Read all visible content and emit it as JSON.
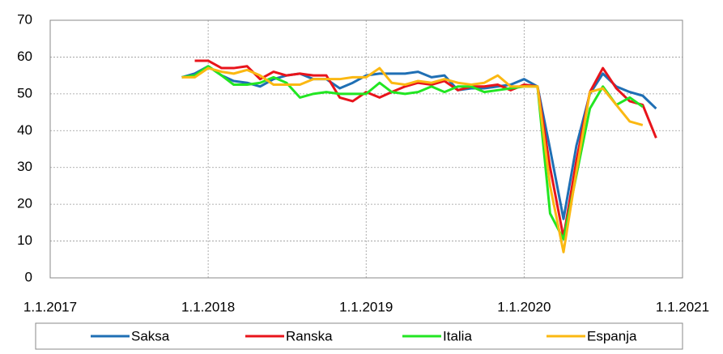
{
  "chart_data": {
    "type": "line",
    "x": [
      "2017-11-01",
      "2017-12-01",
      "2018-01-01",
      "2018-02-01",
      "2018-03-01",
      "2018-04-01",
      "2018-05-01",
      "2018-06-01",
      "2018-07-01",
      "2018-08-01",
      "2018-09-01",
      "2018-10-01",
      "2018-11-01",
      "2018-12-01",
      "2019-01-01",
      "2019-02-01",
      "2019-03-01",
      "2019-04-01",
      "2019-05-01",
      "2019-06-01",
      "2019-07-01",
      "2019-08-01",
      "2019-09-01",
      "2019-10-01",
      "2019-11-01",
      "2019-12-01",
      "2020-01-01",
      "2020-02-01",
      "2020-03-01",
      "2020-04-01",
      "2020-05-01",
      "2020-06-01",
      "2020-07-01",
      "2020-08-01",
      "2020-09-01",
      "2020-10-01",
      "2020-11-01"
    ],
    "series": [
      {
        "name": "Saksa",
        "color": "#1f6fb4",
        "values": [
          54.5,
          55.5,
          57.5,
          55,
          53.5,
          53,
          52,
          54,
          55,
          55.5,
          54,
          54,
          51.5,
          53,
          55,
          55.5,
          55.5,
          55.5,
          56,
          54.5,
          55,
          51,
          51.5,
          51.5,
          52,
          52.5,
          54,
          52,
          35,
          16,
          36,
          50,
          55.5,
          52,
          50.5,
          49.5,
          46
        ]
      },
      {
        "name": "Ranska",
        "color": "#e8141b",
        "values": [
          null,
          59,
          59,
          57,
          57,
          57.5,
          54,
          56,
          55,
          55.5,
          55,
          55,
          49,
          48,
          50.5,
          49,
          50.5,
          52,
          53,
          52.5,
          53.5,
          51,
          52,
          52,
          52.5,
          51,
          52.5,
          52,
          30,
          11,
          32,
          50.5,
          57,
          51.5,
          48,
          47,
          38
        ]
      },
      {
        "name": "Italia",
        "color": "#22e622",
        "values": [
          54.5,
          55,
          57.5,
          55,
          52.5,
          52.5,
          53,
          54.5,
          53,
          49,
          50,
          50.5,
          50,
          50,
          50,
          53,
          50.5,
          50,
          50.5,
          52,
          50.5,
          52,
          52,
          50.5,
          51,
          51.5,
          52,
          52,
          17.5,
          10.5,
          28,
          46,
          52,
          47,
          49,
          46.5,
          null
        ]
      },
      {
        "name": "Espanja",
        "color": "#fbb812",
        "values": [
          54.5,
          54.5,
          57,
          56,
          55.5,
          56.5,
          55,
          52.5,
          52.5,
          52.5,
          54,
          54,
          54,
          54.5,
          54.5,
          57,
          53,
          52.5,
          53.5,
          53,
          54,
          53,
          52.5,
          53,
          55,
          52,
          52,
          52,
          25,
          7,
          29,
          50.5,
          51.5,
          47,
          42.5,
          41.5,
          null
        ]
      }
    ],
    "xlim": [
      "2017-01-01",
      "2021-01-01"
    ],
    "xticks": [
      {
        "value": "2017-01-01",
        "label": "1.1.2017"
      },
      {
        "value": "2018-01-01",
        "label": "1.1.2018"
      },
      {
        "value": "2019-01-01",
        "label": "1.1.2019"
      },
      {
        "value": "2020-01-01",
        "label": "1.1.2020"
      },
      {
        "value": "2021-01-01",
        "label": "1.1.2021"
      }
    ],
    "ylim": [
      0,
      70
    ],
    "yticks": [
      0,
      10,
      20,
      30,
      40,
      50,
      60,
      70
    ],
    "grid": true
  }
}
